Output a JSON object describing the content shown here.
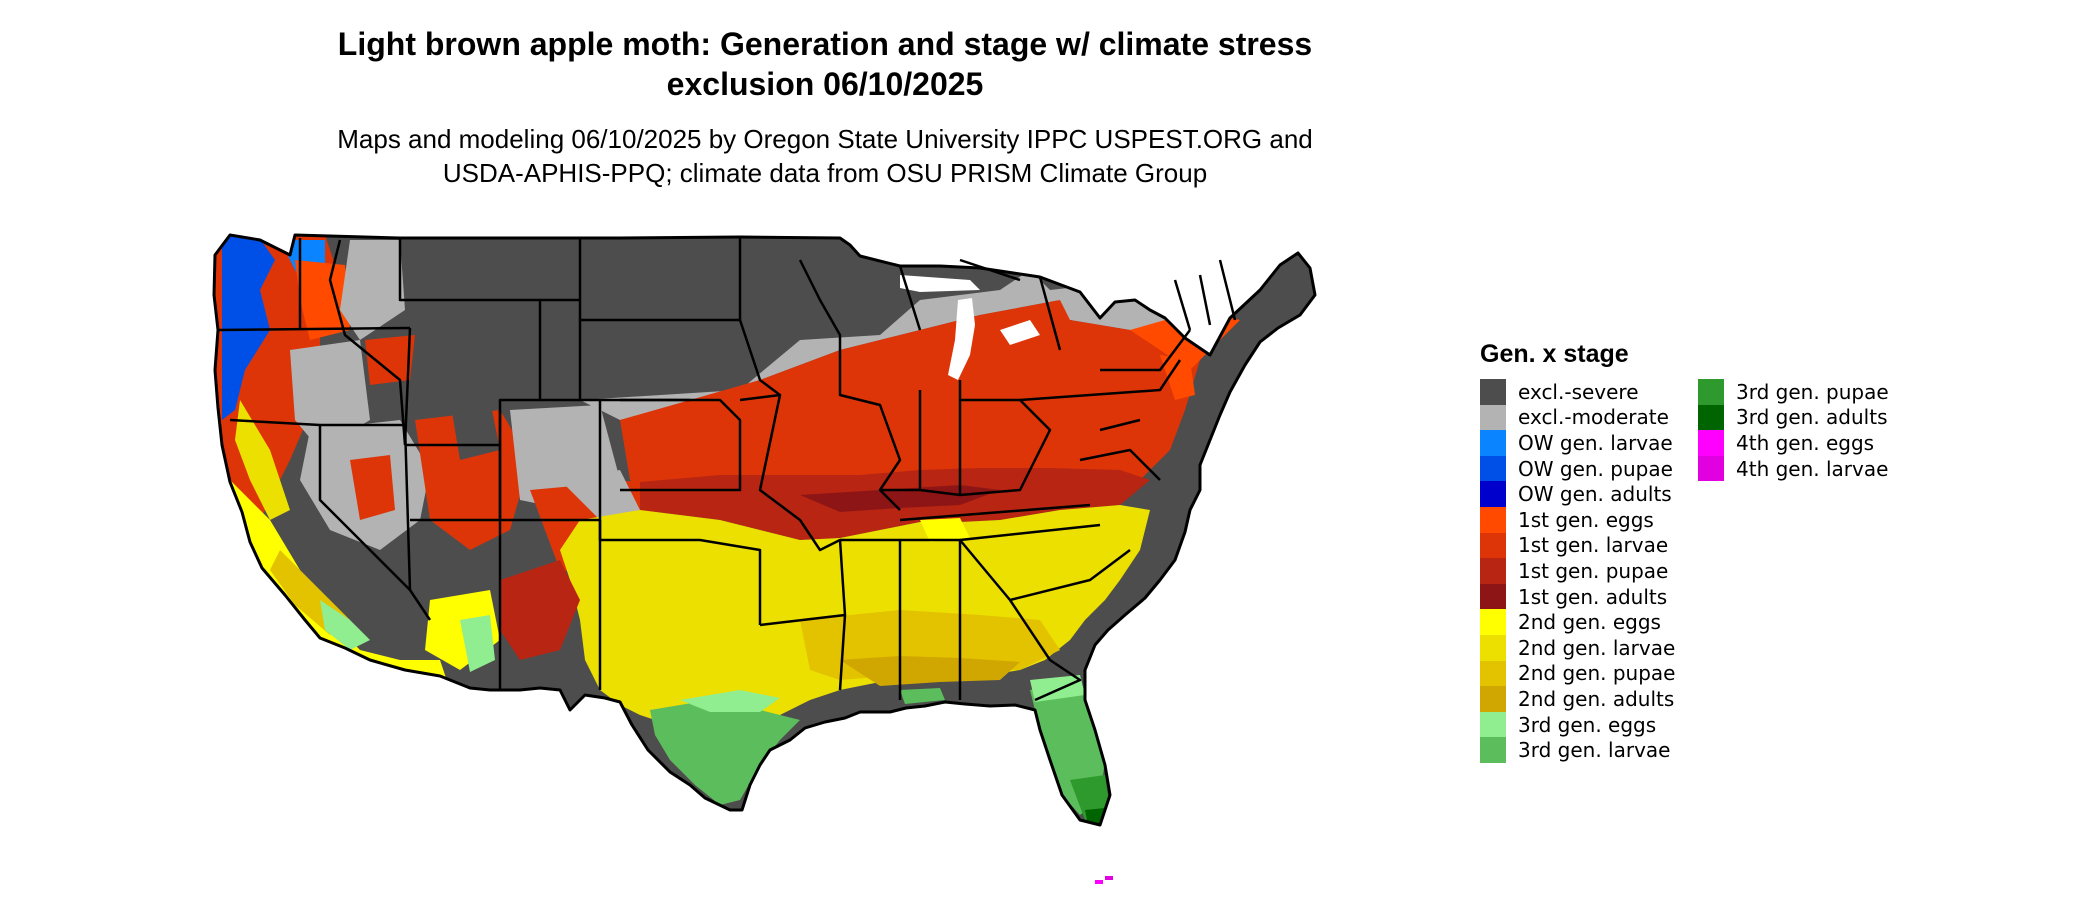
{
  "title": {
    "line1": "Light brown apple moth: Generation and stage w/ climate stress",
    "line2": "exclusion 06/10/2025"
  },
  "subtitle": {
    "line1": "Maps and modeling 06/10/2025 by Oregon State University IPPC USPEST.ORG and",
    "line2": "USDA-APHIS-PPQ; climate data from OSU PRISM Climate Group"
  },
  "legend": {
    "title": "Gen. x stage",
    "items": [
      {
        "label": "excl.-severe",
        "color": "#4d4d4d"
      },
      {
        "label": "excl.-moderate",
        "color": "#b3b3b3"
      },
      {
        "label": "OW gen. larvae",
        "color": "#0a84ff"
      },
      {
        "label": "OW gen. pupae",
        "color": "#0050e8"
      },
      {
        "label": "OW gen. adults",
        "color": "#0000cc"
      },
      {
        "label": "1st gen. eggs",
        "color": "#ff4a00"
      },
      {
        "label": "1st gen. larvae",
        "color": "#dd3508"
      },
      {
        "label": "1st gen. pupae",
        "color": "#b82512"
      },
      {
        "label": "1st gen. adults",
        "color": "#8e1515"
      },
      {
        "label": "2nd gen. eggs",
        "color": "#ffff00"
      },
      {
        "label": "2nd gen. larvae",
        "color": "#ece000"
      },
      {
        "label": "2nd gen. pupae",
        "color": "#e3c200"
      },
      {
        "label": "2nd gen. adults",
        "color": "#cfa700"
      },
      {
        "label": "3rd gen. eggs",
        "color": "#90ee90"
      },
      {
        "label": "3rd gen. larvae",
        "color": "#5cbd5c"
      },
      {
        "label": "3rd gen. pupae",
        "color": "#2e9a2e"
      },
      {
        "label": "3rd gen. adults",
        "color": "#006400"
      },
      {
        "label": "4th gen. eggs",
        "color": "#ff00ff"
      },
      {
        "label": "4th gen. larvae",
        "color": "#e000e0"
      }
    ]
  },
  "map": {
    "background_color": "#ffffff",
    "border_color": "#000000"
  }
}
